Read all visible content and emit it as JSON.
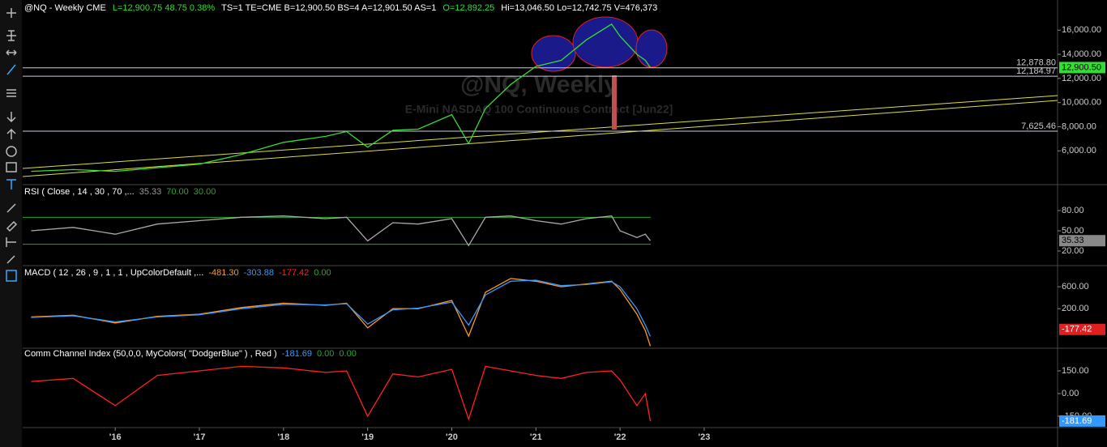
{
  "header": [
    {
      "text": "@NQ - Weekly  CME",
      "color": "#ffffff"
    },
    {
      "text": "L=12,900.75  48.75  0.38%",
      "color": "#33dd33"
    },
    {
      "text": "TS=1  TE=CME  B=12,900.50  BS=4  A=12,901.50  AS=1",
      "color": "#ffffff"
    },
    {
      "text": "O=12,892.25",
      "color": "#33dd33"
    },
    {
      "text": "Hi=13,046.50  Lo=12,742.75  V=476,373",
      "color": "#ffffff"
    }
  ],
  "x_axis": {
    "xlim": [
      2014.9,
      2027.2
    ],
    "ticks": [
      {
        "value": 2016,
        "label": "'16"
      },
      {
        "value": 2017,
        "label": "'17"
      },
      {
        "value": 2018,
        "label": "'18"
      },
      {
        "value": 2019,
        "label": "'19"
      },
      {
        "value": 2020,
        "label": "'20"
      },
      {
        "value": 2021,
        "label": "'21"
      },
      {
        "value": 2022,
        "label": "'22"
      },
      {
        "value": 2023,
        "label": "'23"
      }
    ]
  },
  "x": [
    2015.0,
    2015.5,
    2016.0,
    2016.5,
    2017.0,
    2017.5,
    2018.0,
    2018.5,
    2018.75,
    2019.0,
    2019.3,
    2019.6,
    2020.0,
    2020.2,
    2020.4,
    2020.7,
    2021.0,
    2021.3,
    2021.6,
    2021.9,
    2022.0,
    2022.2,
    2022.3,
    2022.36
  ],
  "price_panel": {
    "watermark_title": "@NQ, Weekly",
    "watermark_subtitle": "E-Mini NASDAQ 100 Continuous Contract [Jun22]",
    "ylim": [
      3200,
      18500
    ],
    "yticks": [
      {
        "value": 6000,
        "label": "6,000.00"
      },
      {
        "value": 8000,
        "label": "8,000.00"
      },
      {
        "value": 10000,
        "label": "10,000.00"
      },
      {
        "value": 12000,
        "label": "12,000.00"
      },
      {
        "value": 14000,
        "label": "14,000.00"
      },
      {
        "value": 16000,
        "label": "16,000.00"
      }
    ],
    "values": [
      4300,
      4450,
      4300,
      4600,
      4900,
      5700,
      6700,
      7200,
      7600,
      6300,
      7700,
      7800,
      9000,
      6600,
      9500,
      11500,
      13000,
      13500,
      15200,
      16500,
      15500,
      14000,
      13500,
      12900
    ],
    "color": "#33dd33",
    "levels": [
      {
        "value": 12878.8,
        "label": "12,878.80"
      },
      {
        "value": 12184.97,
        "label": "12,184.97"
      },
      {
        "value": 7625.46,
        "label": "7,625.46"
      }
    ],
    "last": {
      "value": 12900.5,
      "label": "12,900.50"
    }
  },
  "rsi_panel": {
    "title": [
      {
        "text": "RSI ( Close , 14 , 30 , 70 ,...",
        "color": "#ffffff"
      },
      {
        "text": "35.33",
        "color": "#999999"
      },
      {
        "text": "70.00",
        "color": "#22aa22"
      },
      {
        "text": "30.00",
        "color": "#22aa22"
      }
    ],
    "ylim": [
      -1.6,
      118.4
    ],
    "yticks": [
      {
        "value": 20,
        "label": "20.00"
      },
      {
        "value": 50,
        "label": "50.00"
      },
      {
        "value": 80,
        "label": "80.00"
      }
    ],
    "bands": [
      70,
      30
    ],
    "values": [
      50,
      55,
      45,
      60,
      65,
      70,
      72,
      68,
      70,
      35,
      62,
      60,
      68,
      28,
      70,
      72,
      65,
      60,
      68,
      72,
      50,
      40,
      45,
      35.33
    ],
    "color": "#aaaaaa",
    "last": {
      "value": 35.33,
      "label": "35.33"
    }
  },
  "macd_panel": {
    "title": [
      {
        "text": "MACD ( 12 , 26 , 9 , 1 , 1 , UpColorDefault ,...",
        "color": "#ffffff"
      },
      {
        "text": "-481.30",
        "color": "#ff9922"
      },
      {
        "text": "-303.88",
        "color": "#3399ff"
      },
      {
        "text": "-177.42",
        "color": "#ff2222"
      },
      {
        "text": "0.00",
        "color": "#22aa22"
      }
    ],
    "ylim": [
      -520,
      985
    ],
    "yticks": [
      {
        "value": 200,
        "label": "200.00"
      },
      {
        "value": 600,
        "label": "600.00"
      }
    ],
    "series": [
      {
        "values": [
          50,
          80,
          -60,
          60,
          100,
          220,
          300,
          260,
          300,
          -150,
          200,
          200,
          350,
          -300,
          500,
          750,
          700,
          600,
          650,
          700,
          550,
          100,
          -200,
          -481.3
        ],
        "color": "#ff9922"
      },
      {
        "values": [
          40,
          70,
          -40,
          50,
          90,
          200,
          280,
          270,
          290,
          -80,
          180,
          210,
          320,
          -100,
          450,
          700,
          720,
          620,
          640,
          690,
          600,
          200,
          -100,
          -303.88
        ],
        "color": "#3399ff"
      }
    ],
    "last": {
      "value": -177.42,
      "label": "-177.42"
    }
  },
  "cci_panel": {
    "title": [
      {
        "text": "Comm Channel Index (50,0,0, MyColors( \"DodgerBlue\" ) , Red )",
        "color": "#ffffff"
      },
      {
        "text": "-181.69",
        "color": "#3399ff"
      },
      {
        "text": "0.00",
        "color": "#22aa22"
      },
      {
        "text": "0.00",
        "color": "#22aa22"
      }
    ],
    "ylim": [
      -225,
      300
    ],
    "yticks": [
      {
        "value": -150,
        "label": "-150.00"
      },
      {
        "value": 0,
        "label": "0.00"
      },
      {
        "value": 150,
        "label": "150.00"
      }
    ],
    "values": [
      80,
      100,
      -80,
      120,
      150,
      180,
      170,
      140,
      150,
      -150,
      130,
      110,
      160,
      -170,
      180,
      150,
      120,
      100,
      140,
      150,
      90,
      -80,
      0,
      -181.69
    ],
    "color": "#ff2222",
    "last": {
      "value": -181.69,
      "label": "-181.69"
    }
  }
}
